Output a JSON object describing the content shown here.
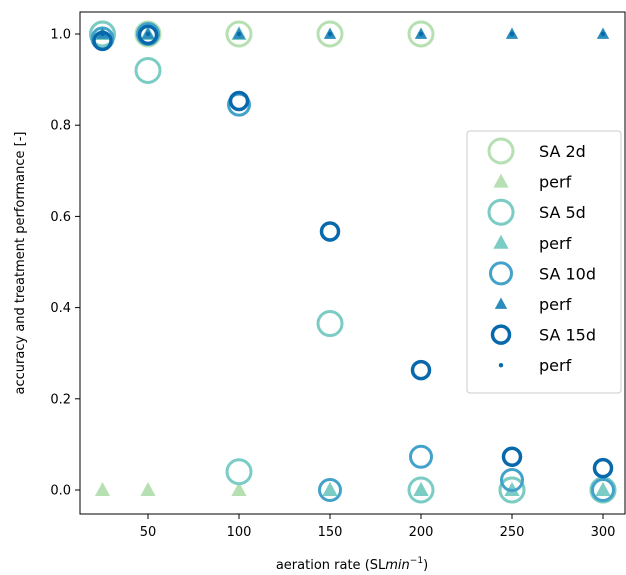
{
  "chart_data": {
    "type": "scatter",
    "xlabel": "aeration rate (SL",
    "xlabel_unit_italic": "min",
    "xlabel_exponent": "−1",
    "xlabel_close": ")",
    "ylabel": "accuracy and treatment performance [-]",
    "xlim": [
      15,
      310
    ],
    "ylim": [
      -0.05,
      1.05
    ],
    "xticks": [
      50,
      100,
      150,
      200,
      250,
      300
    ],
    "yticks": [
      0.0,
      0.2,
      0.4,
      0.6,
      0.8,
      1.0
    ],
    "xtick_labels": [
      "50",
      "100",
      "150",
      "200",
      "250",
      "300"
    ],
    "ytick_labels": [
      "0.0",
      "0.2",
      "0.4",
      "0.6",
      "0.8",
      "1.0"
    ],
    "grid": false,
    "legend_position": "right",
    "series": [
      {
        "name": "SA 2d",
        "marker": "circle-open",
        "color": "#b6e0b2",
        "size": "large",
        "x": [
          25,
          50,
          100,
          150,
          200,
          250,
          300
        ],
        "y": [
          1.0,
          1.0,
          1.0,
          1.0,
          1.0,
          0.0,
          0.0
        ]
      },
      {
        "name": "perf",
        "marker": "triangle",
        "color": "#b6e0b2",
        "size": "medium",
        "x": [
          25,
          50,
          100,
          150,
          200,
          250,
          300
        ],
        "y": [
          0.0,
          0.0,
          0.0,
          0.0,
          0.0,
          0.0,
          0.0
        ]
      },
      {
        "name": "SA 5d",
        "marker": "circle-open",
        "color": "#7bccc4",
        "size": "large",
        "x": [
          25,
          50,
          100,
          150,
          200,
          250,
          300
        ],
        "y": [
          1.0,
          0.92,
          0.04,
          0.365,
          0.0,
          0.0,
          0.0
        ]
      },
      {
        "name": "perf",
        "marker": "triangle",
        "color": "#7bccc4",
        "size": "medium",
        "x": [
          25,
          50,
          100,
          150,
          200,
          250,
          300
        ],
        "y": [
          1.0,
          1.0,
          1.0,
          0.0,
          0.0,
          0.0,
          0.0
        ]
      },
      {
        "name": "SA 10d",
        "marker": "circle-open",
        "color": "#43a2ca",
        "size": "medium",
        "x": [
          25,
          50,
          100,
          150,
          200,
          250,
          300
        ],
        "y": [
          0.99,
          1.0,
          0.845,
          0.0,
          0.073,
          0.022,
          0.0
        ]
      },
      {
        "name": "perf",
        "marker": "triangle",
        "color": "#2b8cbe",
        "size": "small",
        "x": [
          25,
          50,
          100,
          150,
          200,
          250,
          300
        ],
        "y": [
          1.0,
          1.0,
          1.0,
          1.0,
          1.0,
          1.0,
          1.0
        ]
      },
      {
        "name": "SA 15d",
        "marker": "circle-open",
        "color": "#0868ac",
        "size": "small",
        "x": [
          25,
          50,
          100,
          150,
          200,
          250,
          300
        ],
        "y": [
          0.985,
          0.998,
          0.853,
          0.567,
          0.263,
          0.073,
          0.048
        ]
      },
      {
        "name": "perf",
        "marker": "dot",
        "color": "#0868ac",
        "size": "tiny",
        "x": [
          25,
          50,
          100,
          150,
          200,
          250,
          300
        ],
        "y": [
          1.0,
          1.0,
          1.0,
          1.0,
          1.0,
          1.0,
          1.0
        ]
      }
    ]
  }
}
